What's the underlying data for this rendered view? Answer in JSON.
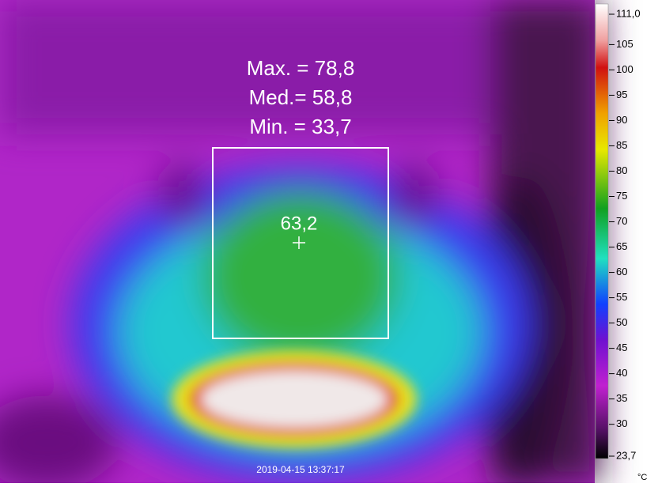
{
  "readouts": {
    "max": "Max. = 78,8",
    "mean": "Med.= 58,8",
    "min": "Min. = 33,7"
  },
  "spot": "63,2",
  "timestamp": "2019-04-15 13:37:17",
  "scale": {
    "max": {
      "value": 111.0,
      "label": "111,0"
    },
    "min": {
      "value": 23.7,
      "label": "23,7"
    },
    "ticks": [
      105,
      100,
      95,
      90,
      85,
      80,
      75,
      70,
      65,
      60,
      55,
      50,
      45,
      40,
      35,
      30
    ],
    "unit": "°C"
  }
}
